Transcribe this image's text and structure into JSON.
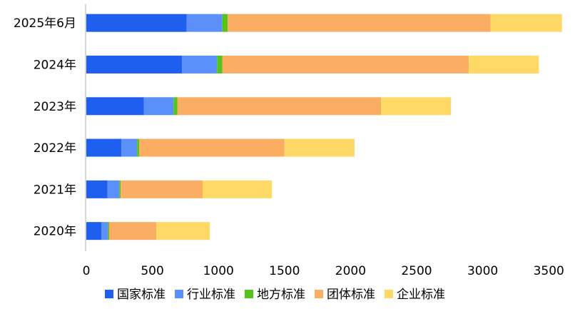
{
  "chart_data": {
    "type": "bar",
    "orientation": "horizontal",
    "stacked": true,
    "title": "",
    "xlabel": "",
    "ylabel": "",
    "categories": [
      "2025年6月",
      "2024年",
      "2023年",
      "2022年",
      "2021年",
      "2020年"
    ],
    "series": [
      {
        "name": "国家标准",
        "color": "#1f5ff0",
        "values": [
          760,
          725,
          435,
          265,
          160,
          115
        ]
      },
      {
        "name": "行业标准",
        "color": "#5b8ff9",
        "values": [
          270,
          265,
          225,
          120,
          90,
          50
        ]
      },
      {
        "name": "地方标准",
        "color": "#52c41a",
        "values": [
          40,
          40,
          30,
          15,
          10,
          8
        ]
      },
      {
        "name": "团体标准",
        "color": "#fbad63",
        "values": [
          1990,
          1865,
          1540,
          1100,
          620,
          357
        ]
      },
      {
        "name": "企业标准",
        "color": "#ffd966",
        "values": [
          540,
          530,
          530,
          530,
          525,
          405
        ]
      }
    ],
    "xlim": [
      0,
      3500
    ],
    "xticks": [
      "0",
      "500",
      "1000",
      "1500",
      "2000",
      "2500",
      "3000",
      "3500"
    ],
    "grid": false,
    "legend_position": "bottom"
  }
}
